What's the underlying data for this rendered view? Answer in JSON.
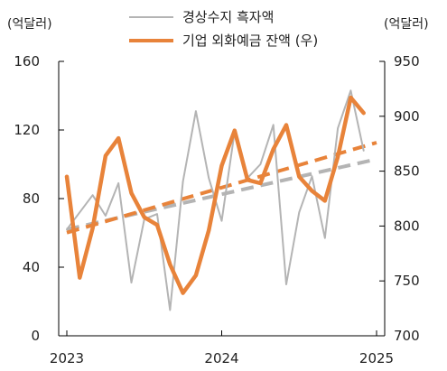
{
  "chart_data": {
    "type": "line",
    "left_unit": "(억달러)",
    "right_unit": "(억달러)",
    "left_ylim": [
      0,
      160
    ],
    "right_ylim": [
      700,
      950
    ],
    "left_ticks": [
      "0",
      "40",
      "80",
      "120",
      "160"
    ],
    "right_ticks": [
      "700",
      "750",
      "800",
      "850",
      "900",
      "950"
    ],
    "x_ticks": [
      "2023",
      "2024",
      "2025"
    ],
    "x_tick_positions": [
      0,
      12,
      24
    ],
    "series": [
      {
        "name": "경상수지 흑자액",
        "axis": "left",
        "color": "#b4b4b4",
        "x": [
          0,
          1,
          2,
          3,
          4,
          5,
          6,
          7,
          8,
          9,
          10,
          11,
          12,
          13,
          14,
          15,
          16,
          17,
          18,
          19,
          20,
          21,
          22,
          23
        ],
        "values": [
          62,
          72,
          82,
          70,
          89,
          31,
          68,
          71,
          15,
          90,
          131,
          92,
          67,
          119,
          92,
          100,
          123,
          30,
          72,
          93,
          57,
          121,
          143,
          108
        ]
      },
      {
        "name": "기업 외화예금 잔액 (우)",
        "axis": "right",
        "color": "#e8833a",
        "x": [
          0,
          1,
          2,
          3,
          4,
          5,
          6,
          7,
          8,
          9,
          10,
          11,
          12,
          13,
          14,
          15,
          16,
          17,
          18,
          19,
          20,
          21,
          22,
          23
        ],
        "values": [
          845,
          753,
          798,
          864,
          880,
          830,
          808,
          801,
          765,
          739,
          755,
          796,
          855,
          887,
          842,
          839,
          870,
          892,
          845,
          832,
          823,
          863,
          917,
          903
        ]
      }
    ],
    "trend_lines": [
      {
        "of": "경상수지 흑자액",
        "axis": "left",
        "color": "#b4b4b4",
        "x": [
          0,
          24
        ],
        "values": [
          62,
          103
        ]
      },
      {
        "of": "기업 외화예금 잔액 (우)",
        "axis": "right",
        "color": "#e8833a",
        "x": [
          0,
          24
        ],
        "values": [
          794,
          876
        ]
      }
    ]
  }
}
